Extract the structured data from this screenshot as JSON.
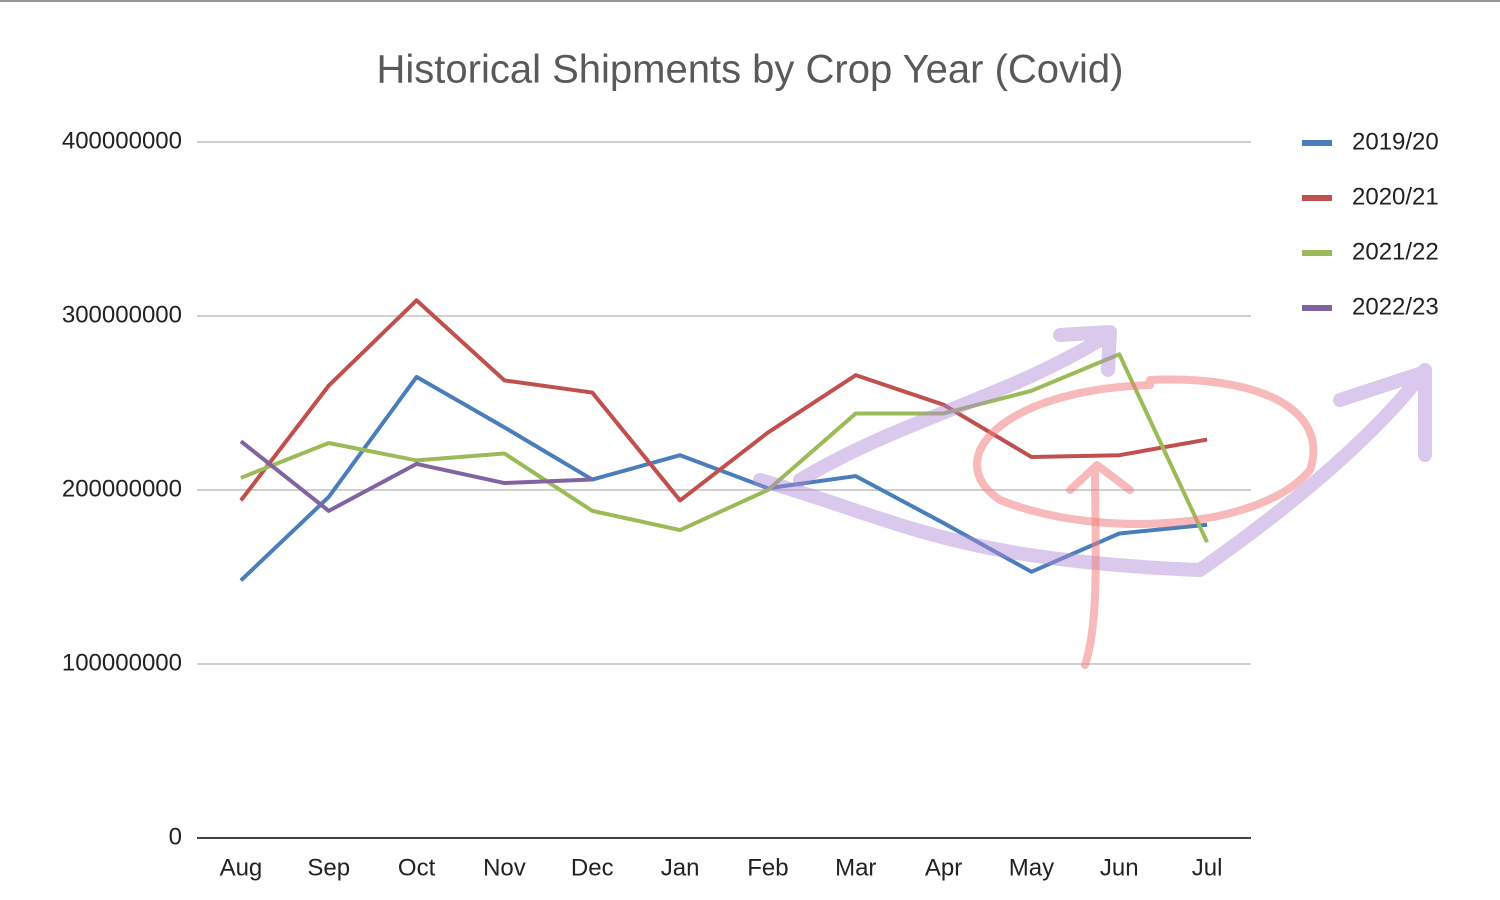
{
  "chart_data": {
    "type": "line",
    "title": "Historical Shipments by Crop Year (Covid)",
    "categories": [
      "Aug",
      "Sep",
      "Oct",
      "Nov",
      "Dec",
      "Jan",
      "Feb",
      "Mar",
      "Apr",
      "May",
      "Jun",
      "Jul"
    ],
    "series": [
      {
        "name": "2019/20",
        "color": "#4a7ebb",
        "values": [
          148000000,
          196000000,
          265000000,
          236000000,
          206000000,
          220000000,
          201000000,
          208000000,
          181000000,
          153000000,
          175000000,
          180000000
        ]
      },
      {
        "name": "2020/21",
        "color": "#c0504d",
        "values": [
          194000000,
          260000000,
          309000000,
          263000000,
          256000000,
          194000000,
          233000000,
          266000000,
          249000000,
          219000000,
          220000000,
          229000000
        ]
      },
      {
        "name": "2021/22",
        "color": "#9bbb59",
        "values": [
          207000000,
          227000000,
          217000000,
          221000000,
          188000000,
          177000000,
          200000000,
          244000000,
          244000000,
          257000000,
          278000000,
          170000000
        ]
      },
      {
        "name": "2022/23",
        "color": "#8064a2",
        "values": [
          228000000,
          188000000,
          215000000,
          204000000,
          206000000,
          null,
          null,
          null,
          null,
          null,
          null,
          null
        ]
      }
    ],
    "ylim": [
      0,
      400000000
    ],
    "yticks": [
      0,
      100000000,
      200000000,
      300000000,
      400000000
    ],
    "grid": true,
    "legend": "right"
  }
}
